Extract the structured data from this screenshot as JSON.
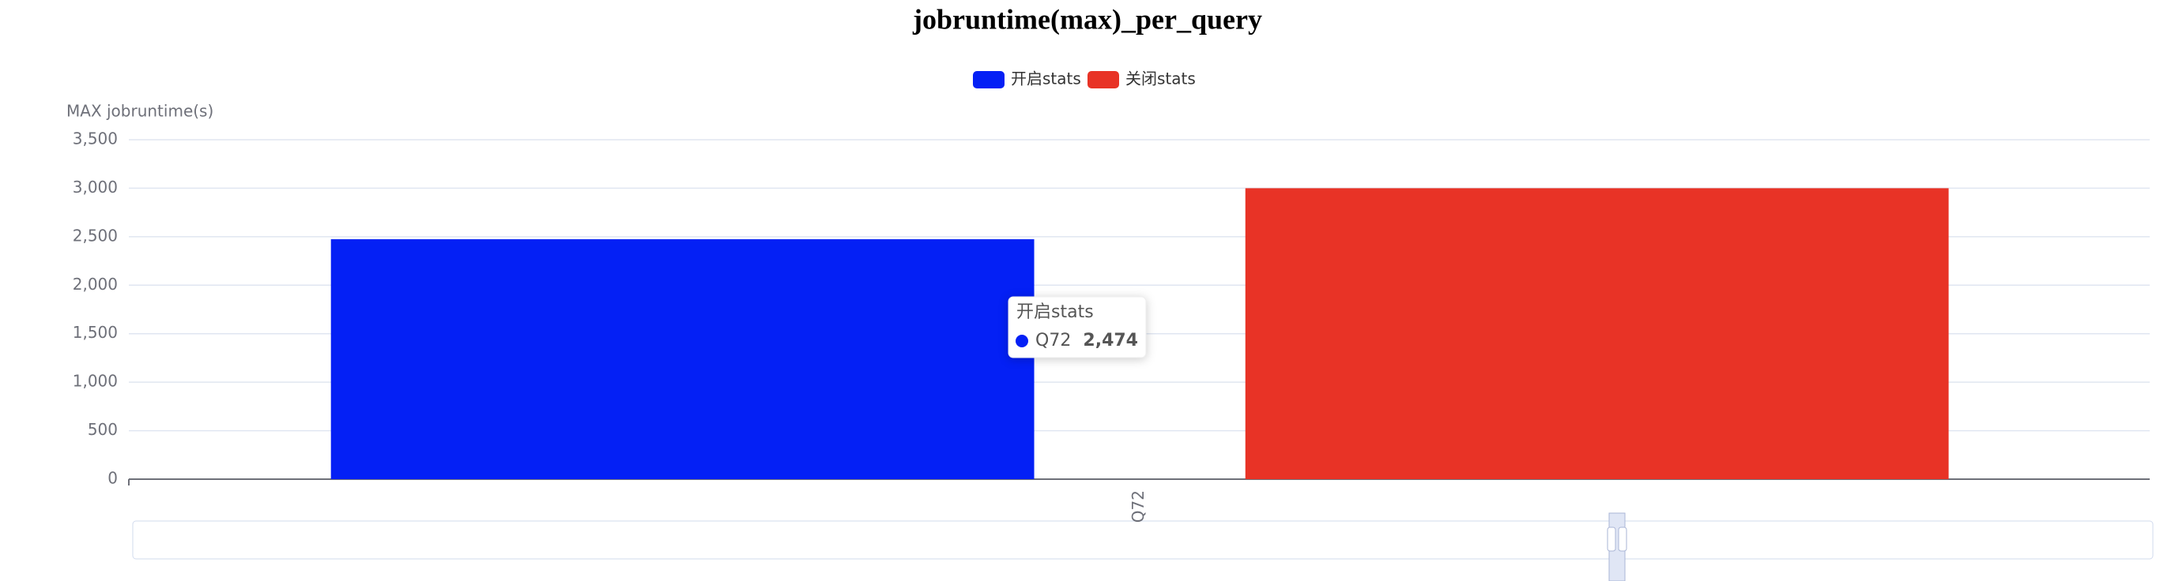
{
  "chart_data": {
    "type": "bar",
    "title": "jobruntime(max)_per_query",
    "y_label": "MAX jobruntime(s)",
    "categories": [
      "Q72"
    ],
    "series": [
      {
        "name": "开启stats",
        "color": "#0420f5",
        "values": [
          2474
        ],
        "value_labels": [
          "2,474"
        ]
      },
      {
        "name": "关闭stats",
        "color": "#e83326",
        "values": [
          3000
        ]
      }
    ],
    "ylim": [
      0,
      3500
    ],
    "yticks": [
      0,
      500,
      {
        "value": 1000,
        "label": "1,000"
      },
      {
        "value": 1500,
        "label": "1,500"
      },
      {
        "value": 2000,
        "label": "2,000"
      },
      {
        "value": 2500,
        "label": "2,500"
      },
      {
        "value": 3000,
        "label": "3,000"
      },
      {
        "value": 3500,
        "label": "3,500"
      }
    ],
    "grid": true
  }
}
